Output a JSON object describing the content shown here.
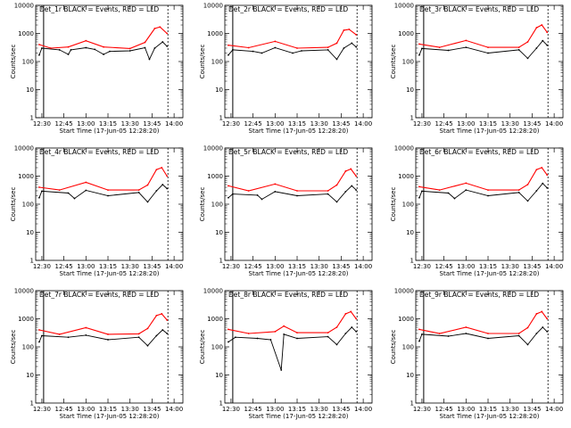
{
  "figure": {
    "xtick_labels": [
      "12:30",
      "12:45",
      "13:00",
      "13:15",
      "13:30",
      "13:45",
      "14:00"
    ],
    "ytick_labels": [
      "1",
      "10",
      "100",
      "1000",
      "10000"
    ],
    "ylabel": "Counts/sec",
    "xlabel": "Start Time (17-Jun-05 12:28:20)",
    "legend": {
      "events_color": "#000000",
      "lld_color": "#ff0000"
    }
  },
  "chart_data": [
    {
      "type": "line",
      "title": "Det_1r BLACK = Events, RED = LLD",
      "ylabel": "Counts/sec",
      "xlabel": "Start Time (17-Jun-05 12:28:20)",
      "xlim": [
        12.43,
        14.1
      ],
      "ylim": [
        1,
        10000
      ],
      "yscale": "log",
      "series": [
        {
          "name": "Events",
          "color": "#000000",
          "values": [
            [
              12.47,
              170
            ],
            [
              12.5,
              300
            ],
            [
              12.7,
              260
            ],
            [
              12.8,
              180
            ],
            [
              12.83,
              260
            ],
            [
              13.0,
              310
            ],
            [
              13.1,
              270
            ],
            [
              13.2,
              180
            ],
            [
              13.27,
              230
            ],
            [
              13.5,
              240
            ],
            [
              13.67,
              310
            ],
            [
              13.72,
              120
            ],
            [
              13.78,
              300
            ],
            [
              13.87,
              500
            ],
            [
              13.92,
              350
            ]
          ]
        },
        {
          "name": "LLD",
          "color": "#ff0000",
          "values": [
            [
              12.47,
              400
            ],
            [
              12.6,
              300
            ],
            [
              12.8,
              330
            ],
            [
              13.0,
              550
            ],
            [
              13.2,
              330
            ],
            [
              13.5,
              290
            ],
            [
              13.67,
              480
            ],
            [
              13.78,
              1500
            ],
            [
              13.84,
              1700
            ],
            [
              13.92,
              1000
            ]
          ]
        }
      ]
    },
    {
      "type": "line",
      "title": "Det_2r BLACK = Events, RED = LLD",
      "ylabel": "Counts/sec",
      "xlabel": "Start Time (17-Jun-05 12:28:20)",
      "xlim": [
        12.43,
        14.1
      ],
      "ylim": [
        1,
        10000
      ],
      "yscale": "log",
      "series": [
        {
          "name": "Events",
          "color": "#000000",
          "values": [
            [
              12.47,
              170
            ],
            [
              12.52,
              260
            ],
            [
              12.75,
              230
            ],
            [
              12.85,
              200
            ],
            [
              13.0,
              310
            ],
            [
              13.2,
              200
            ],
            [
              13.3,
              240
            ],
            [
              13.6,
              260
            ],
            [
              13.7,
              120
            ],
            [
              13.78,
              300
            ],
            [
              13.87,
              450
            ],
            [
              13.92,
              330
            ]
          ]
        },
        {
          "name": "LLD",
          "color": "#ff0000",
          "values": [
            [
              12.47,
              380
            ],
            [
              12.7,
              310
            ],
            [
              13.0,
              520
            ],
            [
              13.25,
              300
            ],
            [
              13.6,
              320
            ],
            [
              13.7,
              450
            ],
            [
              13.78,
              1300
            ],
            [
              13.84,
              1400
            ],
            [
              13.92,
              900
            ]
          ]
        }
      ]
    },
    {
      "type": "line",
      "title": "Det_3r BLACK = Events, RED = LLD",
      "ylabel": "Counts/sec",
      "xlabel": "Start Time (17-Jun-05 12:28:20)",
      "xlim": [
        12.43,
        14.1
      ],
      "ylim": [
        1,
        10000
      ],
      "yscale": "log",
      "series": [
        {
          "name": "Events",
          "color": "#000000",
          "values": [
            [
              12.47,
              170
            ],
            [
              12.5,
              290
            ],
            [
              12.8,
              250
            ],
            [
              13.0,
              320
            ],
            [
              13.25,
              200
            ],
            [
              13.6,
              260
            ],
            [
              13.7,
              130
            ],
            [
              13.8,
              300
            ],
            [
              13.87,
              550
            ],
            [
              13.92,
              380
            ]
          ]
        },
        {
          "name": "LLD",
          "color": "#ff0000",
          "values": [
            [
              12.47,
              420
            ],
            [
              12.7,
              320
            ],
            [
              13.0,
              560
            ],
            [
              13.25,
              320
            ],
            [
              13.6,
              320
            ],
            [
              13.7,
              500
            ],
            [
              13.8,
              1600
            ],
            [
              13.86,
              2000
            ],
            [
              13.92,
              1100
            ]
          ]
        }
      ]
    },
    {
      "type": "line",
      "title": "Det_4r BLACK = Events, RED = LLD",
      "ylabel": "Counts/sec",
      "xlabel": "Start Time (17-Jun-05 12:28:20)",
      "xlim": [
        12.43,
        14.1
      ],
      "ylim": [
        1,
        10000
      ],
      "yscale": "log",
      "series": [
        {
          "name": "Events",
          "color": "#000000",
          "values": [
            [
              12.47,
              170
            ],
            [
              12.5,
              290
            ],
            [
              12.8,
              250
            ],
            [
              12.87,
              160
            ],
            [
              13.0,
              310
            ],
            [
              13.25,
              200
            ],
            [
              13.6,
              260
            ],
            [
              13.7,
              120
            ],
            [
              13.8,
              300
            ],
            [
              13.87,
              500
            ],
            [
              13.92,
              360
            ]
          ]
        },
        {
          "name": "LLD",
          "color": "#ff0000",
          "values": [
            [
              12.47,
              400
            ],
            [
              12.7,
              320
            ],
            [
              13.0,
              600
            ],
            [
              13.25,
              320
            ],
            [
              13.6,
              320
            ],
            [
              13.7,
              480
            ],
            [
              13.8,
              1700
            ],
            [
              13.86,
              2000
            ],
            [
              13.92,
              1000
            ]
          ]
        }
      ]
    },
    {
      "type": "line",
      "title": "Det_5r BLACK = Events, RED = LLD",
      "ylabel": "Counts/sec",
      "xlabel": "Start Time (17-Jun-05 12:28:20)",
      "xlim": [
        12.43,
        14.1
      ],
      "ylim": [
        1,
        10000
      ],
      "yscale": "log",
      "series": [
        {
          "name": "Events",
          "color": "#000000",
          "values": [
            [
              12.47,
              170
            ],
            [
              12.52,
              230
            ],
            [
              12.8,
              210
            ],
            [
              12.85,
              150
            ],
            [
              13.0,
              280
            ],
            [
              13.25,
              200
            ],
            [
              13.6,
              230
            ],
            [
              13.7,
              120
            ],
            [
              13.8,
              280
            ],
            [
              13.87,
              450
            ],
            [
              13.92,
              320
            ]
          ]
        },
        {
          "name": "LLD",
          "color": "#ff0000",
          "values": [
            [
              12.47,
              450
            ],
            [
              12.7,
              300
            ],
            [
              13.0,
              520
            ],
            [
              13.25,
              300
            ],
            [
              13.6,
              300
            ],
            [
              13.7,
              480
            ],
            [
              13.8,
              1500
            ],
            [
              13.86,
              1800
            ],
            [
              13.92,
              1000
            ]
          ]
        }
      ]
    },
    {
      "type": "line",
      "title": "Det_6r BLACK = Events, RED = LLD",
      "ylabel": "Counts/sec",
      "xlabel": "Start Time (17-Jun-05 12:28:20)",
      "xlim": [
        12.43,
        14.1
      ],
      "ylim": [
        1,
        10000
      ],
      "yscale": "log",
      "series": [
        {
          "name": "Events",
          "color": "#000000",
          "values": [
            [
              12.47,
              170
            ],
            [
              12.5,
              290
            ],
            [
              12.8,
              250
            ],
            [
              12.87,
              160
            ],
            [
              13.0,
              320
            ],
            [
              13.25,
              200
            ],
            [
              13.6,
              260
            ],
            [
              13.7,
              130
            ],
            [
              13.8,
              300
            ],
            [
              13.87,
              550
            ],
            [
              13.92,
              380
            ]
          ]
        },
        {
          "name": "LLD",
          "color": "#ff0000",
          "values": [
            [
              12.47,
              420
            ],
            [
              12.7,
              320
            ],
            [
              13.0,
              560
            ],
            [
              13.25,
              320
            ],
            [
              13.6,
              320
            ],
            [
              13.7,
              500
            ],
            [
              13.8,
              1700
            ],
            [
              13.86,
              2000
            ],
            [
              13.92,
              1100
            ]
          ]
        }
      ]
    },
    {
      "type": "line",
      "title": "Det_7r BLACK = Events, RED = LLD",
      "ylabel": "Counts/sec",
      "xlabel": "Start Time (17-Jun-05 12:28:20)",
      "xlim": [
        12.43,
        14.1
      ],
      "ylim": [
        1,
        10000
      ],
      "yscale": "log",
      "series": [
        {
          "name": "Events",
          "color": "#000000",
          "values": [
            [
              12.47,
              150
            ],
            [
              12.5,
              250
            ],
            [
              12.8,
              220
            ],
            [
              13.0,
              260
            ],
            [
              13.25,
              180
            ],
            [
              13.6,
              220
            ],
            [
              13.7,
              110
            ],
            [
              13.8,
              250
            ],
            [
              13.87,
              400
            ],
            [
              13.92,
              300
            ]
          ]
        },
        {
          "name": "LLD",
          "color": "#ff0000",
          "values": [
            [
              12.47,
              400
            ],
            [
              12.7,
              280
            ],
            [
              13.0,
              480
            ],
            [
              13.25,
              280
            ],
            [
              13.6,
              290
            ],
            [
              13.7,
              450
            ],
            [
              13.8,
              1300
            ],
            [
              13.86,
              1500
            ],
            [
              13.92,
              900
            ]
          ]
        }
      ]
    },
    {
      "type": "line",
      "title": "Det_8r BLACK = Events, RED = LLD",
      "ylabel": "Counts/sec",
      "xlabel": "Start Time (17-Jun-05 12:28:20)",
      "xlim": [
        12.43,
        14.1
      ],
      "ylim": [
        1,
        10000
      ],
      "yscale": "log",
      "series": [
        {
          "name": "Events",
          "color": "#000000",
          "values": [
            [
              12.47,
              150
            ],
            [
              12.55,
              220
            ],
            [
              12.8,
              200
            ],
            [
              12.95,
              180
            ],
            [
              13.07,
              15
            ],
            [
              13.1,
              280
            ],
            [
              13.25,
              200
            ],
            [
              13.6,
              230
            ],
            [
              13.7,
              120
            ],
            [
              13.8,
              300
            ],
            [
              13.87,
              500
            ],
            [
              13.92,
              350
            ]
          ]
        },
        {
          "name": "LLD",
          "color": "#ff0000",
          "values": [
            [
              12.47,
              420
            ],
            [
              12.7,
              300
            ],
            [
              13.0,
              350
            ],
            [
              13.1,
              550
            ],
            [
              13.25,
              320
            ],
            [
              13.6,
              320
            ],
            [
              13.7,
              500
            ],
            [
              13.8,
              1500
            ],
            [
              13.86,
              1800
            ],
            [
              13.92,
              1000
            ]
          ]
        }
      ]
    },
    {
      "type": "line",
      "title": "Det_9r BLACK = Events, RED = LLD",
      "ylabel": "Counts/sec",
      "xlabel": "Start Time (17-Jun-05 12:28:20)",
      "xlim": [
        12.43,
        14.1
      ],
      "ylim": [
        1,
        10000
      ],
      "yscale": "log",
      "series": [
        {
          "name": "Events",
          "color": "#000000",
          "values": [
            [
              12.47,
              160
            ],
            [
              12.5,
              280
            ],
            [
              12.8,
              240
            ],
            [
              13.0,
              300
            ],
            [
              13.25,
              200
            ],
            [
              13.6,
              250
            ],
            [
              13.7,
              120
            ],
            [
              13.8,
              300
            ],
            [
              13.87,
              500
            ],
            [
              13.92,
              350
            ]
          ]
        },
        {
          "name": "LLD",
          "color": "#ff0000",
          "values": [
            [
              12.47,
              420
            ],
            [
              12.7,
              300
            ],
            [
              13.0,
              500
            ],
            [
              13.25,
              300
            ],
            [
              13.6,
              300
            ],
            [
              13.7,
              480
            ],
            [
              13.8,
              1500
            ],
            [
              13.86,
              1800
            ],
            [
              13.92,
              1000
            ]
          ]
        }
      ]
    }
  ]
}
